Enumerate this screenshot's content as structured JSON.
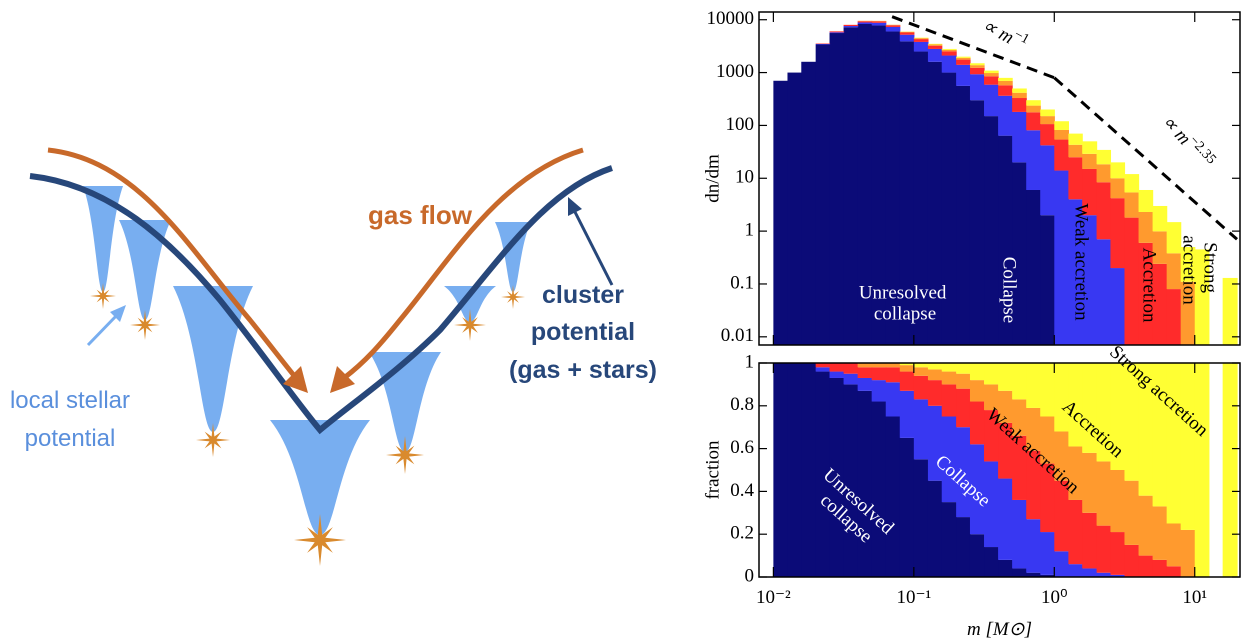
{
  "diagram": {
    "labels": {
      "gas_flow": "gas flow",
      "cluster_potential": [
        "cluster",
        "potential",
        "(gas + stars)"
      ],
      "local_potential": [
        "local stellar",
        "potential"
      ]
    }
  },
  "chart_data": [
    {
      "type": "histogram",
      "ylabel": "dn/dm",
      "log_x": true,
      "log_y": true,
      "stacked": true,
      "bins": [
        0.01,
        0.0126,
        0.0158,
        0.02,
        0.0251,
        0.0316,
        0.0398,
        0.0501,
        0.0631,
        0.0794,
        0.1,
        0.126,
        0.158,
        0.2,
        0.251,
        0.316,
        0.398,
        0.501,
        0.631,
        0.794,
        1,
        1.26,
        1.58,
        2,
        2.51,
        3.16,
        3.98,
        5.01,
        6.31,
        7.94,
        10,
        12.6,
        15.8,
        20
      ],
      "xlim": [
        0.0079,
        21
      ],
      "ylim": [
        0.007,
        14000
      ],
      "yticks": [
        10000,
        1000,
        100,
        10,
        1,
        0.1,
        0.01
      ],
      "series": [
        {
          "name": "Unresolved collapse",
          "color": "#0b0b78",
          "values": [
            700,
            1000,
            1600,
            3400,
            5600,
            7200,
            8300,
            7800,
            6000,
            3900,
            2500,
            1600,
            1000,
            560,
            300,
            150,
            64,
            20,
            6,
            2,
            0,
            0,
            0,
            0,
            0,
            0,
            0,
            0,
            0,
            0,
            0,
            0,
            0
          ]
        },
        {
          "name": "Collapse",
          "color": "#3838f2",
          "values": [
            0,
            0,
            0,
            70,
            180,
            400,
            570,
            950,
            1300,
            1300,
            1300,
            1200,
            1100,
            840,
            630,
            440,
            300,
            160,
            75,
            40,
            14,
            4,
            2,
            0.7,
            0.2,
            0,
            0,
            0,
            0,
            0,
            0,
            0,
            0
          ]
        },
        {
          "name": "Weak accretion",
          "color": "#ff2b2b",
          "values": [
            0,
            0,
            0,
            70,
            240,
            400,
            480,
            570,
            560,
            540,
            500,
            420,
            420,
            360,
            300,
            260,
            210,
            150,
            96,
            64,
            40,
            21,
            13,
            7.7,
            4,
            1.8,
            0.6,
            0.24,
            0.08,
            0,
            0,
            0,
            0
          ]
        },
        {
          "name": "Accretion",
          "color": "#ff9a2e",
          "values": [
            0,
            0,
            0,
            0,
            0,
            0,
            190,
            190,
            160,
            180,
            180,
            180,
            170,
            140,
            150,
            130,
            120,
            85,
            60,
            44,
            28,
            18,
            14,
            10,
            5.8,
            3.6,
            1.7,
            0.75,
            0.3,
            0.11,
            0,
            0,
            0
          ]
        },
        {
          "name": "Strong accretion",
          "color": "#ffff33",
          "values": [
            0,
            0,
            0,
            0,
            0,
            0,
            0,
            0,
            0,
            60,
            90,
            100,
            110,
            100,
            120,
            110,
            100,
            85,
            63,
            50,
            38,
            27,
            21,
            16,
            10,
            6.6,
            3.7,
            2,
            1.1,
            0.39,
            0.45,
            0,
            0.13
          ]
        }
      ],
      "guides": [
        {
          "label": "∝ m",
          "exponent": "−1",
          "x": [
            0.07,
            1
          ],
          "y": [
            11400,
            800
          ]
        },
        {
          "label": "∝ m",
          "exponent": "−2.35",
          "x": [
            1,
            20
          ],
          "y": [
            800,
            0.7
          ]
        }
      ]
    },
    {
      "type": "histogram",
      "ylabel": "fraction",
      "xlabel": "m [M⊙]",
      "log_x": true,
      "stacked": true,
      "bins": [
        0.01,
        0.0126,
        0.0158,
        0.02,
        0.0251,
        0.0316,
        0.0398,
        0.0501,
        0.0631,
        0.0794,
        0.1,
        0.126,
        0.158,
        0.2,
        0.251,
        0.316,
        0.398,
        0.501,
        0.631,
        0.794,
        1,
        1.26,
        1.58,
        2,
        2.51,
        3.16,
        3.98,
        5.01,
        6.31,
        7.94,
        10,
        12.6,
        15.8,
        20
      ],
      "xlim": [
        0.0079,
        21
      ],
      "ylim": [
        0,
        1
      ],
      "yticks": [
        0,
        0.2,
        0.4,
        0.6,
        0.8,
        1
      ],
      "xticks": [
        {
          "value": 0.01,
          "label": "10⁻²"
        },
        {
          "value": 0.1,
          "label": "10⁻¹"
        },
        {
          "value": 1,
          "label": "10⁰"
        },
        {
          "value": 10,
          "label": "10¹"
        }
      ],
      "series": [
        {
          "name": "Unresolved collapse",
          "color": "#0b0b78",
          "values": [
            1,
            1,
            1,
            0.96,
            0.93,
            0.9,
            0.87,
            0.82,
            0.75,
            0.65,
            0.55,
            0.45,
            0.35,
            0.28,
            0.2,
            0.14,
            0.08,
            0.04,
            0.02,
            0.01,
            0,
            0,
            0,
            0,
            0,
            0,
            0,
            0,
            0,
            0,
            0,
            0,
            0
          ]
        },
        {
          "name": "Collapse",
          "color": "#3838f2",
          "values": [
            0,
            0,
            0,
            0.02,
            0.03,
            0.05,
            0.06,
            0.1,
            0.16,
            0.22,
            0.28,
            0.35,
            0.4,
            0.42,
            0.42,
            0.4,
            0.38,
            0.32,
            0.25,
            0.2,
            0.12,
            0.06,
            0.04,
            0.02,
            0.01,
            0,
            0,
            0,
            0,
            0,
            0,
            0,
            0
          ]
        },
        {
          "name": "Weak accretion",
          "color": "#ff2b2b",
          "values": [
            0,
            0,
            0,
            0.02,
            0.04,
            0.05,
            0.05,
            0.06,
            0.07,
            0.09,
            0.11,
            0.12,
            0.15,
            0.18,
            0.2,
            0.24,
            0.26,
            0.3,
            0.32,
            0.32,
            0.33,
            0.3,
            0.26,
            0.22,
            0.2,
            0.15,
            0.1,
            0.08,
            0.05,
            0,
            0,
            0,
            0
          ]
        },
        {
          "name": "Accretion",
          "color": "#ff9a2e",
          "values": [
            0,
            0,
            0,
            0,
            0,
            0,
            0.02,
            0.02,
            0.02,
            0.03,
            0.04,
            0.05,
            0.06,
            0.07,
            0.1,
            0.12,
            0.15,
            0.17,
            0.2,
            0.22,
            0.23,
            0.25,
            0.28,
            0.3,
            0.29,
            0.3,
            0.28,
            0.25,
            0.2,
            0.22,
            0,
            0,
            0
          ]
        },
        {
          "name": "Strong accretion",
          "color": "#ffff33",
          "values": [
            0,
            0,
            0,
            0,
            0,
            0,
            0,
            0,
            0,
            0.01,
            0.02,
            0.03,
            0.04,
            0.05,
            0.08,
            0.1,
            0.13,
            0.17,
            0.21,
            0.25,
            0.32,
            0.39,
            0.42,
            0.46,
            0.5,
            0.55,
            0.62,
            0.67,
            0.75,
            0.78,
            1,
            0,
            1
          ]
        }
      ]
    }
  ]
}
